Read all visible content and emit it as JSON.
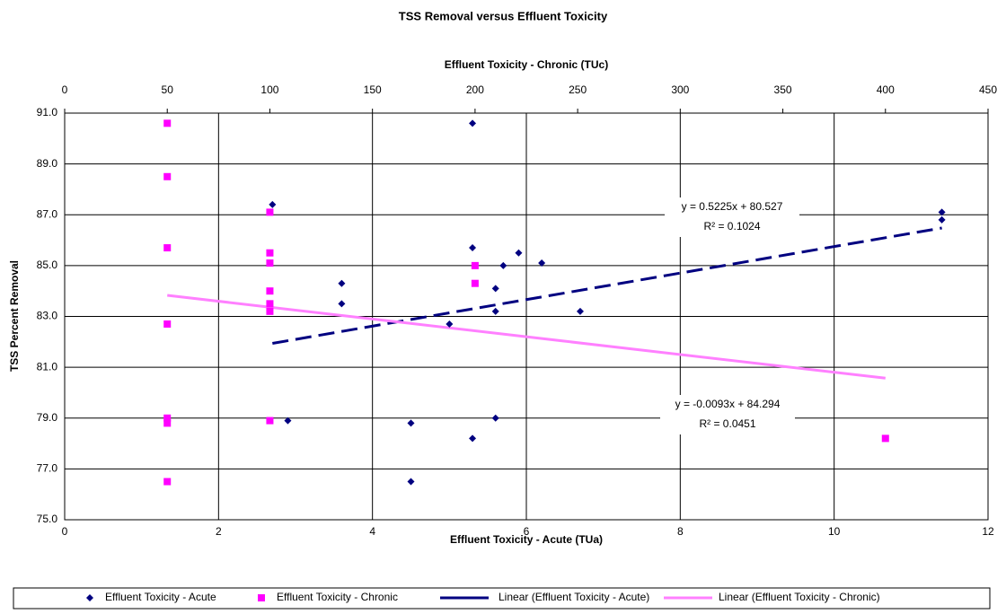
{
  "chart_data": {
    "type": "scatter",
    "title": "TSS Removal versus Effluent Toxicity",
    "xlabel": "Effluent Toxicity - Acute (TUa)",
    "x2label": "Effluent Toxicity - Chronic (TUc)",
    "ylabel": "TSS Percent Removal",
    "xlim": [
      0,
      12
    ],
    "xticks": [
      0,
      2,
      4,
      6,
      8,
      10,
      12
    ],
    "x2lim": [
      0,
      450
    ],
    "x2ticks": [
      0,
      50,
      100,
      150,
      200,
      250,
      300,
      350,
      400,
      450
    ],
    "ylim": [
      75,
      91
    ],
    "yticks": [
      {
        "value": 75,
        "label": "75.0"
      },
      {
        "value": 77,
        "label": "77.0"
      },
      {
        "value": 79,
        "label": "79.0"
      },
      {
        "value": 81,
        "label": "81.0"
      },
      {
        "value": 83,
        "label": "83.0"
      },
      {
        "value": 85,
        "label": "85.0"
      },
      {
        "value": 87,
        "label": "87.0"
      },
      {
        "value": 89,
        "label": "89.0"
      },
      {
        "value": 91,
        "label": "91.0"
      }
    ],
    "grid": true,
    "legend": "bottom",
    "series": [
      {
        "name": "Effluent Toxicity - Acute",
        "color": "#000080",
        "marker": "diamond",
        "axis": "x",
        "x": [
          2.7,
          2.9,
          3.6,
          3.6,
          4.5,
          4.5,
          5.0,
          5.3,
          5.3,
          5.3,
          5.6,
          5.6,
          5.6,
          5.7,
          5.9,
          6.2,
          6.7,
          11.4,
          11.4
        ],
        "values": [
          87.4,
          78.9,
          84.3,
          83.5,
          78.8,
          76.5,
          82.7,
          90.6,
          85.7,
          78.2,
          84.1,
          83.2,
          79.0,
          85.0,
          85.5,
          85.1,
          83.2,
          87.1,
          86.8
        ]
      },
      {
        "name": "Effluent Toxicity - Chronic",
        "color": "#ff00ff",
        "marker": "square",
        "axis": "x2",
        "x": [
          50,
          50,
          50,
          50,
          50,
          50,
          50,
          100,
          100,
          100,
          100,
          100,
          100,
          100,
          200,
          200,
          400
        ],
        "values": [
          90.6,
          88.5,
          85.7,
          82.7,
          79.0,
          78.8,
          76.5,
          87.1,
          85.5,
          85.1,
          84.0,
          83.5,
          83.2,
          78.9,
          85.0,
          84.3,
          78.2
        ]
      },
      {
        "name": "Linear (Effluent Toxicity - Acute)",
        "color": "#000080",
        "marker": "dashed",
        "axis": "x",
        "x": [
          2.7,
          11.4
        ],
        "values": [
          81.94,
          86.48
        ]
      },
      {
        "name": "Linear (Effluent Toxicity - Chronic)",
        "color": "#ff80ff",
        "marker": "solid",
        "axis": "x2",
        "x": [
          50,
          400
        ],
        "values": [
          83.83,
          80.57
        ]
      }
    ],
    "annotations": [
      {
        "equation": "y = 0.5225x + 80.527",
        "r2": "R² = 0.1024"
      },
      {
        "equation": "y = -0.0093x + 84.294",
        "r2": "R² = 0.0451"
      }
    ]
  }
}
